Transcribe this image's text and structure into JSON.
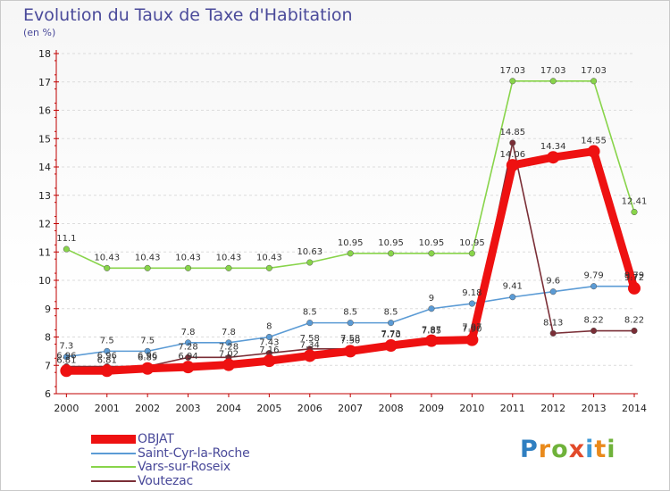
{
  "title": "Evolution du Taux de Taxe d'Habitation",
  "unit_label": "(en %)",
  "brand": "Proxiti",
  "chart_data": {
    "type": "line",
    "x": [
      2000,
      2001,
      2002,
      2003,
      2004,
      2005,
      2006,
      2007,
      2008,
      2009,
      2010,
      2011,
      2012,
      2013,
      2014
    ],
    "ylim": [
      6,
      18
    ],
    "yticks": [
      6,
      7,
      8,
      9,
      10,
      11,
      12,
      13,
      14,
      15,
      16,
      17,
      18
    ],
    "grid": "horizontal",
    "legend_position": "bottom-left",
    "series": [
      {
        "name": "OBJAT",
        "color": "#ee1111",
        "values": [
          6.81,
          6.81,
          6.89,
          6.94,
          7.02,
          7.16,
          7.34,
          7.5,
          7.7,
          7.87,
          7.9,
          14.06,
          14.34,
          14.55,
          9.72
        ],
        "labels": [
          "6.81",
          "6.81",
          "6.89",
          "6.94",
          "7.02",
          "7.16",
          "7.34",
          "7.50",
          "7.70",
          "7.87",
          "7.90",
          "14.06",
          "14.34",
          "14.55",
          "9.72"
        ]
      },
      {
        "name": "Saint-Cyr-la-Roche",
        "color": "#5b9bd5",
        "values": [
          7.3,
          7.5,
          7.5,
          7.8,
          7.8,
          8.0,
          8.5,
          8.5,
          8.5,
          9.0,
          9.18,
          9.41,
          9.6,
          9.79,
          9.79
        ],
        "labels": [
          "7.3",
          "7.5",
          "7.5",
          "7.8",
          "7.8",
          "8",
          "8.5",
          "8.5",
          "8.5",
          "9",
          "9.18",
          "9.41",
          "9.6",
          "9.79",
          "9.79"
        ]
      },
      {
        "name": "Vars-sur-Roseix",
        "color": "#88d44a",
        "values": [
          11.1,
          10.43,
          10.43,
          10.43,
          10.43,
          10.43,
          10.63,
          10.95,
          10.95,
          10.95,
          10.95,
          17.03,
          17.03,
          17.03,
          12.41
        ],
        "labels": [
          "11.1",
          "10.43",
          "10.43",
          "10.43",
          "10.43",
          "10.43",
          "10.63",
          "10.95",
          "10.95",
          "10.95",
          "10.95",
          "17.03",
          "17.03",
          "17.03",
          "12.41"
        ]
      },
      {
        "name": "Voutezac",
        "color": "#7a2e36",
        "values": [
          6.96,
          6.96,
          6.96,
          7.28,
          7.28,
          7.43,
          7.58,
          7.58,
          7.73,
          7.85,
          7.97,
          14.85,
          8.13,
          8.22,
          8.22
        ],
        "labels": [
          "6.96",
          "6.96",
          "6.96",
          "7.28",
          "7.28",
          "7.43",
          "7.58",
          "7.58",
          "7.73",
          "7.85",
          "7.97",
          "14.85",
          "8.13",
          "8.22",
          "8.22"
        ]
      }
    ]
  }
}
